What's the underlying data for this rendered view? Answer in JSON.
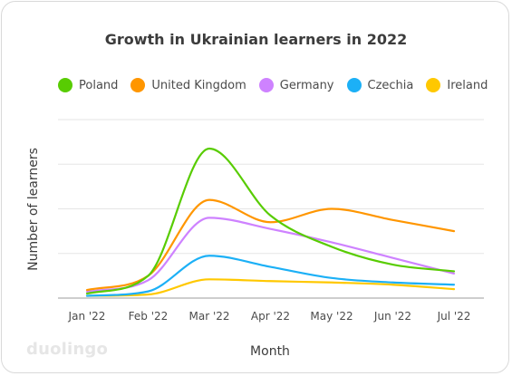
{
  "chart_data": {
    "type": "line",
    "title": "Growth in Ukrainian learners in 2022",
    "xlabel": "Month",
    "ylabel": "Number of learners",
    "categories": [
      "Jan '22",
      "Feb '22",
      "Mar '22",
      "Apr '22",
      "May '22",
      "Jun '22",
      "Jul '22"
    ],
    "ylim": [
      0,
      4
    ],
    "grid": true,
    "legend_position": "top",
    "series": [
      {
        "name": "Poland",
        "color": "#58cc02",
        "values": [
          0.1,
          0.5,
          3.35,
          1.85,
          1.15,
          0.75,
          0.6
        ]
      },
      {
        "name": "United Kingdom",
        "color": "#ff9600",
        "values": [
          0.18,
          0.5,
          2.2,
          1.7,
          2.0,
          1.75,
          1.5
        ]
      },
      {
        "name": "Germany",
        "color": "#ce82ff",
        "values": [
          0.14,
          0.4,
          1.8,
          1.55,
          1.25,
          0.9,
          0.55
        ]
      },
      {
        "name": "Czechia",
        "color": "#1cb0f6",
        "values": [
          0.05,
          0.15,
          0.95,
          0.7,
          0.45,
          0.35,
          0.3
        ]
      },
      {
        "name": "Ireland",
        "color": "#ffc800",
        "values": [
          0.05,
          0.08,
          0.42,
          0.38,
          0.35,
          0.3,
          0.2
        ]
      }
    ]
  },
  "branding": {
    "logo_text": "duolingo"
  }
}
